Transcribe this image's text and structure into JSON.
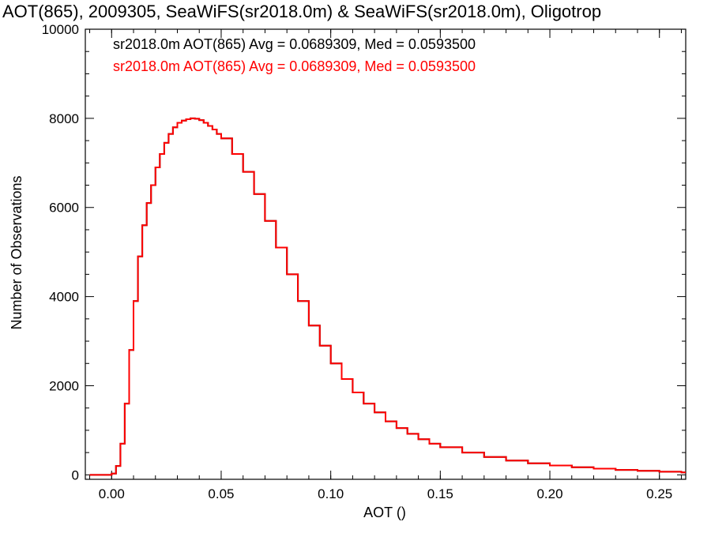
{
  "chart_data": {
    "type": "line",
    "title": "AOT(865), 2009305, SeaWiFS(sr2018.0m) & SeaWiFS(sr2018.0m), Oligotrop",
    "xlabel": "AOT ()",
    "ylabel": "Number of Observations",
    "xlim": [
      -0.012,
      0.262
    ],
    "ylim": [
      -100,
      10000
    ],
    "xticks": [
      0.0,
      0.05,
      0.1,
      0.15,
      0.2,
      0.25
    ],
    "xtick_labels": [
      "0.00",
      "0.05",
      "0.10",
      "0.15",
      "0.20",
      "0.25"
    ],
    "yticks": [
      0,
      2000,
      4000,
      6000,
      8000,
      10000
    ],
    "ytick_labels": [
      "0",
      "2000",
      "4000",
      "6000",
      "8000",
      "10000"
    ],
    "grid": false,
    "step_style": "histogram",
    "series": [
      {
        "name": "sr2018.0m AOT(865) Avg = 0.0689309, Med = 0.0593500",
        "color": "#000000",
        "x": [
          -0.01,
          -0.005,
          0.0,
          0.002,
          0.004,
          0.006,
          0.008,
          0.01,
          0.012,
          0.014,
          0.016,
          0.018,
          0.02,
          0.022,
          0.024,
          0.026,
          0.028,
          0.03,
          0.032,
          0.034,
          0.036,
          0.038,
          0.04,
          0.042,
          0.044,
          0.046,
          0.048,
          0.05,
          0.055,
          0.06,
          0.065,
          0.07,
          0.075,
          0.08,
          0.085,
          0.09,
          0.095,
          0.1,
          0.105,
          0.11,
          0.115,
          0.12,
          0.125,
          0.13,
          0.135,
          0.14,
          0.145,
          0.15,
          0.16,
          0.17,
          0.18,
          0.19,
          0.2,
          0.21,
          0.22,
          0.23,
          0.24,
          0.25,
          0.26
        ],
        "y": [
          0,
          0,
          30,
          200,
          700,
          1600,
          2800,
          3900,
          4900,
          5600,
          6100,
          6500,
          6900,
          7200,
          7450,
          7650,
          7800,
          7900,
          7950,
          7980,
          8000,
          7990,
          7960,
          7900,
          7830,
          7750,
          7650,
          7550,
          7200,
          6800,
          6300,
          5700,
          5100,
          4500,
          3900,
          3350,
          2900,
          2500,
          2150,
          1850,
          1600,
          1400,
          1200,
          1050,
          920,
          800,
          700,
          620,
          500,
          400,
          320,
          260,
          210,
          170,
          140,
          110,
          90,
          70,
          55
        ]
      },
      {
        "name": "sr2018.0m AOT(865) Avg = 0.0689309, Med = 0.0593500",
        "color": "#ff0000",
        "x": [
          -0.01,
          -0.005,
          0.0,
          0.002,
          0.004,
          0.006,
          0.008,
          0.01,
          0.012,
          0.014,
          0.016,
          0.018,
          0.02,
          0.022,
          0.024,
          0.026,
          0.028,
          0.03,
          0.032,
          0.034,
          0.036,
          0.038,
          0.04,
          0.042,
          0.044,
          0.046,
          0.048,
          0.05,
          0.055,
          0.06,
          0.065,
          0.07,
          0.075,
          0.08,
          0.085,
          0.09,
          0.095,
          0.1,
          0.105,
          0.11,
          0.115,
          0.12,
          0.125,
          0.13,
          0.135,
          0.14,
          0.145,
          0.15,
          0.16,
          0.17,
          0.18,
          0.19,
          0.2,
          0.21,
          0.22,
          0.23,
          0.24,
          0.25,
          0.26
        ],
        "y": [
          0,
          0,
          30,
          200,
          700,
          1600,
          2800,
          3900,
          4900,
          5600,
          6100,
          6500,
          6900,
          7200,
          7450,
          7650,
          7800,
          7900,
          7950,
          7980,
          8000,
          7990,
          7960,
          7900,
          7830,
          7750,
          7650,
          7550,
          7200,
          6800,
          6300,
          5700,
          5100,
          4500,
          3900,
          3350,
          2900,
          2500,
          2150,
          1850,
          1600,
          1400,
          1200,
          1050,
          920,
          800,
          700,
          620,
          500,
          400,
          320,
          260,
          210,
          170,
          140,
          110,
          90,
          70,
          55
        ]
      }
    ],
    "annotations": [
      {
        "text": "sr2018.0m AOT(865) Avg = 0.0689309, Med = 0.0593500",
        "color": "#000000"
      },
      {
        "text": "sr2018.0m AOT(865) Avg = 0.0689309, Med = 0.0593500",
        "color": "#ff0000"
      }
    ]
  }
}
